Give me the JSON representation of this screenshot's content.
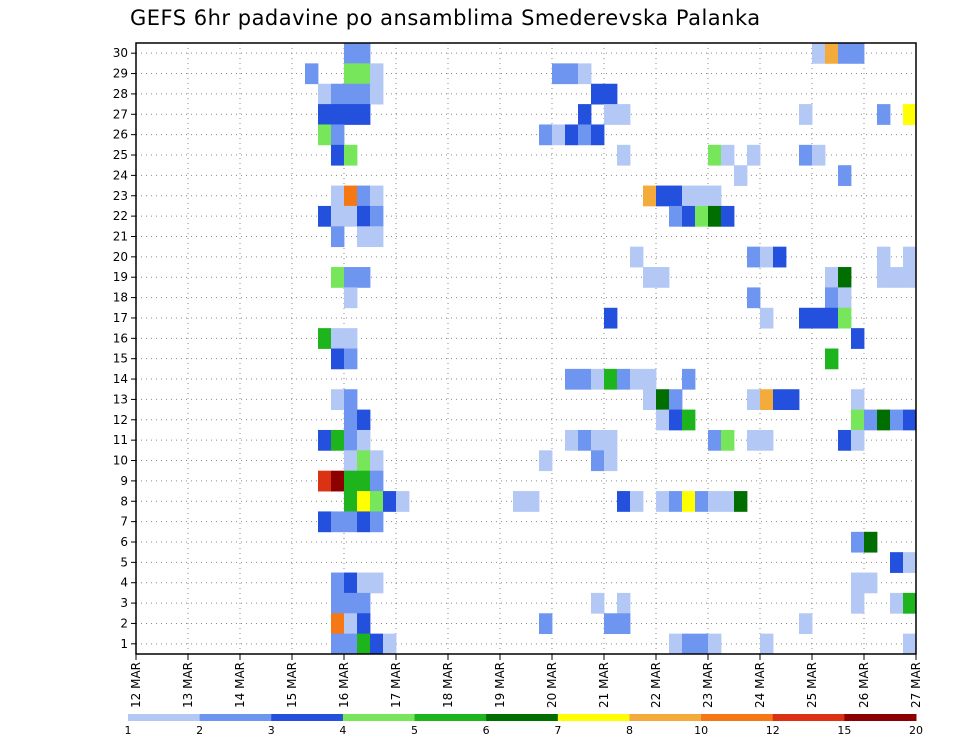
{
  "chart_data": {
    "type": "heatmap",
    "title": "GEFS 6hr padavine po ansamblima Smederevska Palanka",
    "xlabel": "",
    "ylabel": "",
    "x_tick_labels": [
      "12 MAR",
      "13 MAR",
      "14 MAR",
      "15 MAR",
      "16 MAR",
      "17 MAR",
      "18 MAR",
      "19 MAR",
      "20 MAR",
      "21 MAR",
      "22 MAR",
      "23 MAR",
      "24 MAR",
      "25 MAR",
      "26 MAR",
      "27 MAR"
    ],
    "xlim": [
      0,
      15
    ],
    "y_tick_labels": [
      "1",
      "2",
      "3",
      "4",
      "5",
      "6",
      "7",
      "8",
      "9",
      "10",
      "11",
      "12",
      "13",
      "14",
      "15",
      "16",
      "17",
      "18",
      "19",
      "20",
      "21",
      "22",
      "23",
      "24",
      "25",
      "26",
      "27",
      "28",
      "29",
      "30"
    ],
    "ylim": [
      0,
      30
    ],
    "grid": true,
    "legend_placement": "bottom",
    "legend": {
      "thresholds": [
        "1",
        "2",
        "3",
        "4",
        "5",
        "6",
        "7",
        "8",
        "10",
        "12",
        "15",
        "20"
      ],
      "colors": [
        "#b4c8f5",
        "#6e96f0",
        "#2350dc",
        "#78e65a",
        "#1eb41e",
        "#006e00",
        "#ffff00",
        "#f5aa3c",
        "#f57814",
        "#dc3214",
        "#8c0000"
      ]
    },
    "cell_value_meaning": "class index 0..10 corresponding to legend colors",
    "cells": [
      {
        "m": 30,
        "d": "16.0",
        "c": 1
      },
      {
        "m": 30,
        "d": "16.25",
        "c": 1
      },
      {
        "m": 30,
        "d": "25.0",
        "c": 0
      },
      {
        "m": 30,
        "d": "25.25",
        "c": 7
      },
      {
        "m": 30,
        "d": "25.5",
        "c": 1
      },
      {
        "m": 30,
        "d": "25.75",
        "c": 1
      },
      {
        "m": 29,
        "d": "15.25",
        "c": 1
      },
      {
        "m": 29,
        "d": "16.0",
        "c": 3
      },
      {
        "m": 29,
        "d": "16.25",
        "c": 3
      },
      {
        "m": 29,
        "d": "16.5",
        "c": 0
      },
      {
        "m": 29,
        "d": "20.0",
        "c": 1
      },
      {
        "m": 29,
        "d": "20.25",
        "c": 1
      },
      {
        "m": 29,
        "d": "20.5",
        "c": 0
      },
      {
        "m": 28,
        "d": "15.5",
        "c": 0
      },
      {
        "m": 28,
        "d": "15.75",
        "c": 1
      },
      {
        "m": 28,
        "d": "16.0",
        "c": 1
      },
      {
        "m": 28,
        "d": "16.25",
        "c": 1
      },
      {
        "m": 28,
        "d": "16.5",
        "c": 0
      },
      {
        "m": 28,
        "d": "20.75",
        "c": 2
      },
      {
        "m": 28,
        "d": "21.0",
        "c": 2
      },
      {
        "m": 27,
        "d": "15.5",
        "c": 2
      },
      {
        "m": 27,
        "d": "15.75",
        "c": 2
      },
      {
        "m": 27,
        "d": "16.0",
        "c": 2
      },
      {
        "m": 27,
        "d": "16.25",
        "c": 2
      },
      {
        "m": 27,
        "d": "20.5",
        "c": 2
      },
      {
        "m": 27,
        "d": "21.0",
        "c": 0
      },
      {
        "m": 27,
        "d": "21.25",
        "c": 0
      },
      {
        "m": 27,
        "d": "24.75",
        "c": 0
      },
      {
        "m": 27,
        "d": "26.25",
        "c": 1
      },
      {
        "m": 27,
        "d": "26.75",
        "c": 6
      },
      {
        "m": 26,
        "d": "15.5",
        "c": 3
      },
      {
        "m": 26,
        "d": "15.75",
        "c": 1
      },
      {
        "m": 26,
        "d": "19.75",
        "c": 1
      },
      {
        "m": 26,
        "d": "20.0",
        "c": 0
      },
      {
        "m": 26,
        "d": "20.25",
        "c": 2
      },
      {
        "m": 26,
        "d": "20.5",
        "c": 1
      },
      {
        "m": 26,
        "d": "20.75",
        "c": 2
      },
      {
        "m": 25,
        "d": "15.75",
        "c": 2
      },
      {
        "m": 25,
        "d": "16.0",
        "c": 3
      },
      {
        "m": 25,
        "d": "21.25",
        "c": 0
      },
      {
        "m": 25,
        "d": "23.0",
        "c": 3
      },
      {
        "m": 25,
        "d": "23.25",
        "c": 0
      },
      {
        "m": 25,
        "d": "23.75",
        "c": 0
      },
      {
        "m": 25,
        "d": "24.75",
        "c": 1
      },
      {
        "m": 25,
        "d": "25.0",
        "c": 0
      },
      {
        "m": 24,
        "d": "23.5",
        "c": 0
      },
      {
        "m": 24,
        "d": "25.5",
        "c": 1
      },
      {
        "m": 23,
        "d": "15.75",
        "c": 0
      },
      {
        "m": 23,
        "d": "16.0",
        "c": 8
      },
      {
        "m": 23,
        "d": "16.25",
        "c": 1
      },
      {
        "m": 23,
        "d": "16.5",
        "c": 0
      },
      {
        "m": 23,
        "d": "21.75",
        "c": 7
      },
      {
        "m": 23,
        "d": "22.0",
        "c": 2
      },
      {
        "m": 23,
        "d": "22.25",
        "c": 2
      },
      {
        "m": 23,
        "d": "22.5",
        "c": 0
      },
      {
        "m": 23,
        "d": "22.75",
        "c": 0
      },
      {
        "m": 23,
        "d": "23.0",
        "c": 0
      },
      {
        "m": 22,
        "d": "15.5",
        "c": 2
      },
      {
        "m": 22,
        "d": "15.75",
        "c": 0
      },
      {
        "m": 22,
        "d": "16.0",
        "c": 0
      },
      {
        "m": 22,
        "d": "16.25",
        "c": 2
      },
      {
        "m": 22,
        "d": "16.5",
        "c": 1
      },
      {
        "m": 22,
        "d": "22.25",
        "c": 1
      },
      {
        "m": 22,
        "d": "22.5",
        "c": 2
      },
      {
        "m": 22,
        "d": "22.75",
        "c": 3
      },
      {
        "m": 22,
        "d": "23.0",
        "c": 5
      },
      {
        "m": 22,
        "d": "23.25",
        "c": 2
      },
      {
        "m": 21,
        "d": "15.75",
        "c": 1
      },
      {
        "m": 21,
        "d": "16.25",
        "c": 0
      },
      {
        "m": 21,
        "d": "16.5",
        "c": 0
      },
      {
        "m": 20,
        "d": "21.5",
        "c": 0
      },
      {
        "m": 20,
        "d": "23.75",
        "c": 1
      },
      {
        "m": 20,
        "d": "24.0",
        "c": 0
      },
      {
        "m": 20,
        "d": "24.25",
        "c": 2
      },
      {
        "m": 20,
        "d": "26.25",
        "c": 0
      },
      {
        "m": 20,
        "d": "26.75",
        "c": 0
      },
      {
        "m": 19,
        "d": "15.75",
        "c": 3
      },
      {
        "m": 19,
        "d": "16.0",
        "c": 1
      },
      {
        "m": 19,
        "d": "16.25",
        "c": 1
      },
      {
        "m": 19,
        "d": "21.75",
        "c": 0
      },
      {
        "m": 19,
        "d": "22.0",
        "c": 0
      },
      {
        "m": 19,
        "d": "25.25",
        "c": 0
      },
      {
        "m": 19,
        "d": "25.5",
        "c": 5
      },
      {
        "m": 19,
        "d": "26.25",
        "c": 0
      },
      {
        "m": 19,
        "d": "26.5",
        "c": 0
      },
      {
        "m": 19,
        "d": "26.75",
        "c": 0
      },
      {
        "m": 18,
        "d": "16.0",
        "c": 0
      },
      {
        "m": 18,
        "d": "23.75",
        "c": 1
      },
      {
        "m": 18,
        "d": "25.25",
        "c": 1
      },
      {
        "m": 18,
        "d": "25.5",
        "c": 0
      },
      {
        "m": 17,
        "d": "21.0",
        "c": 2
      },
      {
        "m": 17,
        "d": "24.0",
        "c": 0
      },
      {
        "m": 17,
        "d": "24.75",
        "c": 2
      },
      {
        "m": 17,
        "d": "25.0",
        "c": 2
      },
      {
        "m": 17,
        "d": "25.25",
        "c": 2
      },
      {
        "m": 17,
        "d": "25.5",
        "c": 3
      },
      {
        "m": 16,
        "d": "15.5",
        "c": 4
      },
      {
        "m": 16,
        "d": "15.75",
        "c": 0
      },
      {
        "m": 16,
        "d": "16.0",
        "c": 0
      },
      {
        "m": 16,
        "d": "25.75",
        "c": 2
      },
      {
        "m": 15,
        "d": "15.75",
        "c": 2
      },
      {
        "m": 15,
        "d": "16.0",
        "c": 1
      },
      {
        "m": 15,
        "d": "25.25",
        "c": 4
      },
      {
        "m": 14,
        "d": "20.25",
        "c": 1
      },
      {
        "m": 14,
        "d": "20.5",
        "c": 1
      },
      {
        "m": 14,
        "d": "20.75",
        "c": 0
      },
      {
        "m": 14,
        "d": "21.0",
        "c": 4
      },
      {
        "m": 14,
        "d": "21.25",
        "c": 1
      },
      {
        "m": 14,
        "d": "21.5",
        "c": 0
      },
      {
        "m": 14,
        "d": "21.75",
        "c": 0
      },
      {
        "m": 14,
        "d": "22.5",
        "c": 1
      },
      {
        "m": 13,
        "d": "15.75",
        "c": 0
      },
      {
        "m": 13,
        "d": "16.0",
        "c": 1
      },
      {
        "m": 13,
        "d": "21.75",
        "c": 0
      },
      {
        "m": 13,
        "d": "22.0",
        "c": 5
      },
      {
        "m": 13,
        "d": "22.25",
        "c": 1
      },
      {
        "m": 13,
        "d": "23.75",
        "c": 0
      },
      {
        "m": 13,
        "d": "24.0",
        "c": 7
      },
      {
        "m": 13,
        "d": "24.25",
        "c": 2
      },
      {
        "m": 13,
        "d": "24.5",
        "c": 2
      },
      {
        "m": 13,
        "d": "25.75",
        "c": 0
      },
      {
        "m": 12,
        "d": "16.0",
        "c": 1
      },
      {
        "m": 12,
        "d": "16.25",
        "c": 2
      },
      {
        "m": 12,
        "d": "22.0",
        "c": 0
      },
      {
        "m": 12,
        "d": "22.25",
        "c": 2
      },
      {
        "m": 12,
        "d": "22.5",
        "c": 4
      },
      {
        "m": 12,
        "d": "25.75",
        "c": 3
      },
      {
        "m": 12,
        "d": "26.0",
        "c": 1
      },
      {
        "m": 12,
        "d": "26.25",
        "c": 5
      },
      {
        "m": 12,
        "d": "26.5",
        "c": 1
      },
      {
        "m": 12,
        "d": "26.75",
        "c": 2
      },
      {
        "m": 11,
        "d": "15.5",
        "c": 2
      },
      {
        "m": 11,
        "d": "15.75",
        "c": 4
      },
      {
        "m": 11,
        "d": "16.0",
        "c": 1
      },
      {
        "m": 11,
        "d": "16.25",
        "c": 0
      },
      {
        "m": 11,
        "d": "20.25",
        "c": 0
      },
      {
        "m": 11,
        "d": "20.5",
        "c": 1
      },
      {
        "m": 11,
        "d": "20.75",
        "c": 0
      },
      {
        "m": 11,
        "d": "21.0",
        "c": 0
      },
      {
        "m": 11,
        "d": "23.0",
        "c": 1
      },
      {
        "m": 11,
        "d": "23.25",
        "c": 3
      },
      {
        "m": 11,
        "d": "23.75",
        "c": 0
      },
      {
        "m": 11,
        "d": "24.0",
        "c": 0
      },
      {
        "m": 11,
        "d": "25.5",
        "c": 2
      },
      {
        "m": 11,
        "d": "25.75",
        "c": 0
      },
      {
        "m": 10,
        "d": "16.0",
        "c": 0
      },
      {
        "m": 10,
        "d": "16.25",
        "c": 3
      },
      {
        "m": 10,
        "d": "16.5",
        "c": 0
      },
      {
        "m": 10,
        "d": "19.75",
        "c": 0
      },
      {
        "m": 10,
        "d": "20.75",
        "c": 1
      },
      {
        "m": 10,
        "d": "21.0",
        "c": 0
      },
      {
        "m": 9,
        "d": "15.5",
        "c": 9
      },
      {
        "m": 9,
        "d": "15.75",
        "c": 10
      },
      {
        "m": 9,
        "d": "16.0",
        "c": 4
      },
      {
        "m": 9,
        "d": "16.25",
        "c": 4
      },
      {
        "m": 9,
        "d": "16.5",
        "c": 1
      },
      {
        "m": 8,
        "d": "16.0",
        "c": 4
      },
      {
        "m": 8,
        "d": "16.25",
        "c": 6
      },
      {
        "m": 8,
        "d": "16.5",
        "c": 3
      },
      {
        "m": 8,
        "d": "16.75",
        "c": 2
      },
      {
        "m": 8,
        "d": "17.0",
        "c": 0
      },
      {
        "m": 8,
        "d": "19.25",
        "c": 0
      },
      {
        "m": 8,
        "d": "19.5",
        "c": 0
      },
      {
        "m": 8,
        "d": "21.25",
        "c": 2
      },
      {
        "m": 8,
        "d": "21.5",
        "c": 0
      },
      {
        "m": 8,
        "d": "22.0",
        "c": 0
      },
      {
        "m": 8,
        "d": "22.25",
        "c": 1
      },
      {
        "m": 8,
        "d": "22.5",
        "c": 6
      },
      {
        "m": 8,
        "d": "22.75",
        "c": 1
      },
      {
        "m": 8,
        "d": "23.0",
        "c": 0
      },
      {
        "m": 8,
        "d": "23.25",
        "c": 0
      },
      {
        "m": 8,
        "d": "23.5",
        "c": 5
      },
      {
        "m": 7,
        "d": "15.5",
        "c": 2
      },
      {
        "m": 7,
        "d": "15.75",
        "c": 1
      },
      {
        "m": 7,
        "d": "16.0",
        "c": 1
      },
      {
        "m": 7,
        "d": "16.25",
        "c": 2
      },
      {
        "m": 7,
        "d": "16.5",
        "c": 1
      },
      {
        "m": 6,
        "d": "25.75",
        "c": 1
      },
      {
        "m": 6,
        "d": "26.0",
        "c": 5
      },
      {
        "m": 5,
        "d": "26.5",
        "c": 2
      },
      {
        "m": 5,
        "d": "26.75",
        "c": 0
      },
      {
        "m": 4,
        "d": "15.75",
        "c": 1
      },
      {
        "m": 4,
        "d": "16.0",
        "c": 2
      },
      {
        "m": 4,
        "d": "16.25",
        "c": 0
      },
      {
        "m": 4,
        "d": "16.5",
        "c": 0
      },
      {
        "m": 4,
        "d": "25.75",
        "c": 0
      },
      {
        "m": 4,
        "d": "26.0",
        "c": 0
      },
      {
        "m": 3,
        "d": "15.75",
        "c": 1
      },
      {
        "m": 3,
        "d": "16.0",
        "c": 1
      },
      {
        "m": 3,
        "d": "16.25",
        "c": 1
      },
      {
        "m": 3,
        "d": "20.75",
        "c": 0
      },
      {
        "m": 3,
        "d": "21.25",
        "c": 0
      },
      {
        "m": 3,
        "d": "25.75",
        "c": 0
      },
      {
        "m": 3,
        "d": "26.5",
        "c": 0
      },
      {
        "m": 3,
        "d": "26.75",
        "c": 4
      },
      {
        "m": 2,
        "d": "15.75",
        "c": 8
      },
      {
        "m": 2,
        "d": "16.0",
        "c": 0
      },
      {
        "m": 2,
        "d": "16.25",
        "c": 2
      },
      {
        "m": 2,
        "d": "19.75",
        "c": 1
      },
      {
        "m": 2,
        "d": "21.0",
        "c": 1
      },
      {
        "m": 2,
        "d": "21.25",
        "c": 1
      },
      {
        "m": 2,
        "d": "24.75",
        "c": 0
      },
      {
        "m": 1,
        "d": "15.75",
        "c": 1
      },
      {
        "m": 1,
        "d": "16.0",
        "c": 1
      },
      {
        "m": 1,
        "d": "16.25",
        "c": 4
      },
      {
        "m": 1,
        "d": "16.5",
        "c": 2
      },
      {
        "m": 1,
        "d": "16.75",
        "c": 0
      },
      {
        "m": 1,
        "d": "22.25",
        "c": 0
      },
      {
        "m": 1,
        "d": "22.5",
        "c": 1
      },
      {
        "m": 1,
        "d": "22.75",
        "c": 1
      },
      {
        "m": 1,
        "d": "23.0",
        "c": 0
      },
      {
        "m": 1,
        "d": "24.0",
        "c": 0
      },
      {
        "m": 1,
        "d": "26.75",
        "c": 0
      }
    ]
  }
}
